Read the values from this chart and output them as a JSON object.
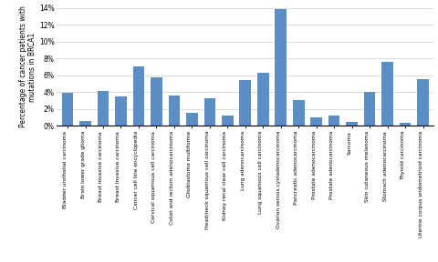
{
  "categories": [
    "Bladder urothelial carcinoma",
    "Brain lower grade glioma",
    "Breast invasive carcinoma",
    "Breast invasive carcinoma",
    "Cancer cell line encyclopedia",
    "Cervical squamous cell carcinoma",
    "Colon and rectum adenocarcinoma",
    "Glioblastoma multiforme",
    "Head/neck squamous cell carcinoma",
    "Kidney renal clear cell carcinoma",
    "Lung adenocarcinoma",
    "Lung squamous cell carcinoma",
    "Ovarian serous cystadenocarcinoma",
    "Pancreatic adenocarcinoma",
    "Prostate adenocarcinoma",
    "Prostate adenocarcinoma",
    "Sarcoma",
    "Skin cutaneous melanoma",
    "Stomach adenocarcinoma",
    "Thyroid carcinoma",
    "Uterine corpus endometrioid carcinoma"
  ],
  "values": [
    3.9,
    0.6,
    4.1,
    3.5,
    7.0,
    5.8,
    3.6,
    1.5,
    3.3,
    1.2,
    5.4,
    6.3,
    13.8,
    3.0,
    1.0,
    1.2,
    0.5,
    4.0,
    7.6,
    0.3,
    5.5
  ],
  "bar_color": "#5b8ec4",
  "ylabel": "Percentage of cancer patients with\nmutations in BRCA1",
  "ylim": [
    0,
    14
  ],
  "yticks": [
    0,
    2,
    4,
    6,
    8,
    10,
    12,
    14
  ],
  "ytick_labels": [
    "0%",
    "2%",
    "4%",
    "6%",
    "8%",
    "10%",
    "12%",
    "14%"
  ],
  "ylabel_fontsize": 5.5,
  "tick_fontsize": 5.5,
  "xtick_fontsize": 4.2
}
